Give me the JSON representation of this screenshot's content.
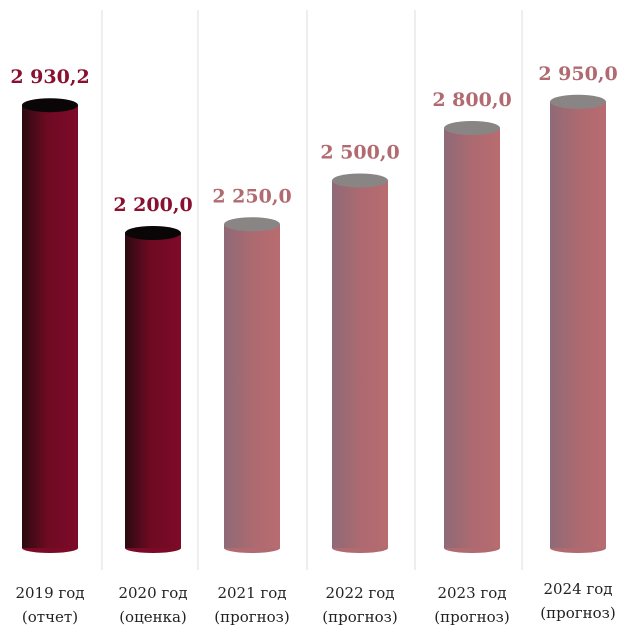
{
  "chart_data": {
    "type": "bar",
    "categories": [
      [
        "2019 год",
        "(отчет)"
      ],
      [
        "2020 год",
        "(оценка)"
      ],
      [
        "2021 год",
        "(прогноз)"
      ],
      [
        "2022 год",
        "(прогноз)"
      ],
      [
        "2023 год",
        "(прогноз)"
      ],
      [
        "2024 год",
        "(прогноз)"
      ]
    ],
    "values": [
      2930.2,
      2200.0,
      2250.0,
      2500.0,
      2800.0,
      2950.0
    ],
    "value_labels": [
      "2 930,2",
      "2 200,0",
      "2 250,0",
      "2 500,0",
      "2 800,0",
      "2 950,0"
    ],
    "colors": [
      "#7a0a26",
      "#7a0a26",
      "#b06a70",
      "#b06a70",
      "#b06a70",
      "#b06a70"
    ],
    "ylim": [
      400,
      3000
    ]
  }
}
